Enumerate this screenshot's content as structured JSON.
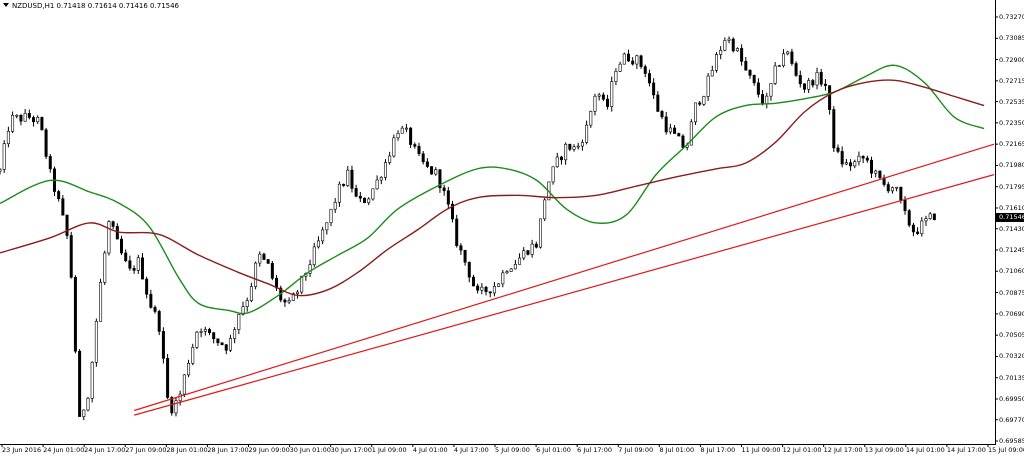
{
  "header": {
    "text": "NZDUSD,H1  0.71418 0.71614 0.71416 0.71546"
  },
  "colors": {
    "background": "#ffffff",
    "axis": "#000000",
    "candle": "#000000",
    "candle_up_fill": "#ffffff",
    "ma_fast": "#1a8c1a",
    "ma_slow": "#8b1c1c",
    "trendline": "#e01818"
  },
  "chart_data": {
    "type": "candlestick",
    "title": "NZDUSD,H1",
    "ohlc_readout": {
      "open": "0.71418",
      "high": "0.71614",
      "low": "0.71416",
      "close": "0.71546"
    },
    "current_price": "0.71546",
    "y_ticks": [
      "0.73270",
      "0.73085",
      "0.72900",
      "0.72715",
      "0.72535",
      "0.72350",
      "0.72165",
      "0.71980",
      "0.71795",
      "0.71610",
      "0.71430",
      "0.71245",
      "0.71060",
      "0.70875",
      "0.70690",
      "0.70505",
      "0.70320",
      "0.70135",
      "0.69950",
      "0.69770",
      "0.69585"
    ],
    "ylim": [
      0.69585,
      0.7336
    ],
    "x_ticks": [
      "23 Jun 2016",
      "24 Jun 01:00",
      "24 Jun 17:00",
      "27 Jun 09:00",
      "28 Jun 01:00",
      "28 Jun 17:00",
      "29 Jun 09:00",
      "30 Jun 01:00",
      "30 Jun 17:00",
      "1 Jul 09:00",
      "4 Jul 01:00",
      "4 Jul 17:00",
      "5 Jul 09:00",
      "6 Jul 01:00",
      "6 Jul 17:00",
      "7 Jul 09:00",
      "8 Jul 01:00",
      "8 Jul 17:00",
      "11 Jul 09:00",
      "12 Jul 01:00",
      "12 Jul 17:00",
      "13 Jul 09:00",
      "14 Jul 01:00",
      "14 Jul 17:00",
      "15 Jul 09:00"
    ],
    "close_path": [
      [
        0,
        0.7193
      ],
      [
        1,
        0.7238
      ],
      [
        3,
        0.724
      ],
      [
        4,
        0.7235
      ],
      [
        5,
        0.7192
      ],
      [
        6,
        0.7163
      ],
      [
        7,
        0.7127
      ],
      [
        8,
        0.6975
      ],
      [
        9,
        0.7005
      ],
      [
        10,
        0.7088
      ],
      [
        11,
        0.715
      ],
      [
        12,
        0.7125
      ],
      [
        13,
        0.7105
      ],
      [
        14,
        0.7115
      ],
      [
        15,
        0.708
      ],
      [
        16,
        0.706
      ],
      [
        17,
        0.6985
      ],
      [
        18,
        0.6995
      ],
      [
        19,
        0.703
      ],
      [
        20,
        0.706
      ],
      [
        21,
        0.705
      ],
      [
        22,
        0.7045
      ],
      [
        23,
        0.704
      ],
      [
        24,
        0.707
      ],
      [
        25,
        0.7085
      ],
      [
        26,
        0.712
      ],
      [
        27,
        0.711
      ],
      [
        28,
        0.7085
      ],
      [
        29,
        0.7075
      ],
      [
        30,
        0.709
      ],
      [
        31,
        0.711
      ],
      [
        32,
        0.713
      ],
      [
        33,
        0.715
      ],
      [
        34,
        0.7175
      ],
      [
        35,
        0.719
      ],
      [
        36,
        0.7165
      ],
      [
        37,
        0.717
      ],
      [
        38,
        0.7185
      ],
      [
        39,
        0.7205
      ],
      [
        40,
        0.723
      ],
      [
        41,
        0.7225
      ],
      [
        42,
        0.7205
      ],
      [
        43,
        0.7195
      ],
      [
        44,
        0.719
      ],
      [
        45,
        0.7165
      ],
      [
        46,
        0.713
      ],
      [
        47,
        0.711
      ],
      [
        48,
        0.7085
      ],
      [
        49,
        0.709
      ],
      [
        50,
        0.7095
      ],
      [
        51,
        0.711
      ],
      [
        52,
        0.7115
      ],
      [
        53,
        0.7125
      ],
      [
        54,
        0.713
      ],
      [
        55,
        0.718
      ],
      [
        56,
        0.72
      ],
      [
        57,
        0.7215
      ],
      [
        58,
        0.7212
      ],
      [
        59,
        0.723
      ],
      [
        60,
        0.7265
      ],
      [
        61,
        0.7245
      ],
      [
        62,
        0.7285
      ],
      [
        63,
        0.7293
      ],
      [
        64,
        0.729
      ],
      [
        65,
        0.728
      ],
      [
        66,
        0.725
      ],
      [
        67,
        0.7232
      ],
      [
        68,
        0.7222
      ],
      [
        69,
        0.7212
      ],
      [
        70,
        0.725
      ],
      [
        71,
        0.7265
      ],
      [
        72,
        0.729
      ],
      [
        73,
        0.731
      ],
      [
        74,
        0.73
      ],
      [
        75,
        0.728
      ],
      [
        76,
        0.7265
      ],
      [
        77,
        0.725
      ],
      [
        78,
        0.728
      ],
      [
        79,
        0.73
      ],
      [
        80,
        0.7278
      ],
      [
        81,
        0.7265
      ],
      [
        82,
        0.7275
      ],
      [
        83,
        0.727
      ],
      [
        84,
        0.721
      ],
      [
        85,
        0.7198
      ],
      [
        86,
        0.72
      ],
      [
        87,
        0.7205
      ],
      [
        88,
        0.719
      ],
      [
        89,
        0.718
      ],
      [
        90,
        0.718
      ],
      [
        91,
        0.7155
      ],
      [
        92,
        0.714
      ],
      [
        93,
        0.7148
      ],
      [
        94,
        0.7155
      ]
    ],
    "moving_averages": [
      {
        "role": "fast",
        "points": [
          [
            0,
            0.7165
          ],
          [
            5,
            0.7185
          ],
          [
            9,
            0.7175
          ],
          [
            12,
            0.7165
          ],
          [
            15,
            0.7145
          ],
          [
            18,
            0.71
          ],
          [
            20,
            0.7078
          ],
          [
            23,
            0.7072
          ],
          [
            25,
            0.707
          ],
          [
            28,
            0.7085
          ],
          [
            31,
            0.7105
          ],
          [
            34,
            0.712
          ],
          [
            37,
            0.7135
          ],
          [
            40,
            0.716
          ],
          [
            44,
            0.718
          ],
          [
            48,
            0.7195
          ],
          [
            51,
            0.7195
          ],
          [
            54,
            0.7185
          ],
          [
            57,
            0.716
          ],
          [
            60,
            0.7148
          ],
          [
            63,
            0.7155
          ],
          [
            66,
            0.719
          ],
          [
            69,
            0.7215
          ],
          [
            72,
            0.724
          ],
          [
            75,
            0.725
          ],
          [
            78,
            0.7252
          ],
          [
            81,
            0.7256
          ],
          [
            84,
            0.7262
          ],
          [
            87,
            0.7275
          ],
          [
            90,
            0.7285
          ],
          [
            93,
            0.727
          ],
          [
            96,
            0.724
          ],
          [
            99,
            0.723
          ]
        ]
      },
      {
        "role": "slow",
        "points": [
          [
            0,
            0.7122
          ],
          [
            5,
            0.7135
          ],
          [
            9,
            0.7148
          ],
          [
            12,
            0.714
          ],
          [
            16,
            0.7138
          ],
          [
            20,
            0.712
          ],
          [
            24,
            0.7105
          ],
          [
            27,
            0.7095
          ],
          [
            30,
            0.7085
          ],
          [
            33,
            0.709
          ],
          [
            36,
            0.7105
          ],
          [
            39,
            0.7125
          ],
          [
            42,
            0.7142
          ],
          [
            45,
            0.716
          ],
          [
            48,
            0.717
          ],
          [
            52,
            0.7172
          ],
          [
            56,
            0.717
          ],
          [
            60,
            0.7172
          ],
          [
            64,
            0.718
          ],
          [
            68,
            0.7188
          ],
          [
            72,
            0.7195
          ],
          [
            75,
            0.72
          ],
          [
            78,
            0.7218
          ],
          [
            81,
            0.7245
          ],
          [
            84,
            0.7262
          ],
          [
            87,
            0.727
          ],
          [
            90,
            0.7272
          ],
          [
            93,
            0.7266
          ],
          [
            96,
            0.7258
          ],
          [
            99,
            0.725
          ]
        ]
      }
    ],
    "trendlines": [
      {
        "from": [
          13,
          0.6985
        ],
        "to": [
          100,
          0.72165
        ]
      },
      {
        "from": [
          13,
          0.6981
        ],
        "to": [
          100,
          0.719
        ]
      }
    ]
  }
}
